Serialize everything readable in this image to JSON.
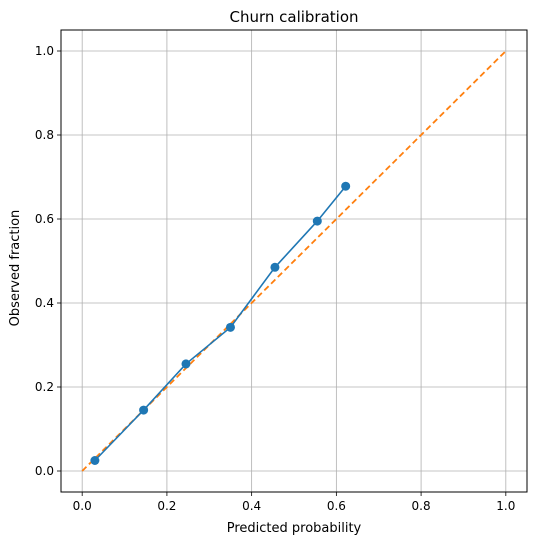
{
  "chart_data": {
    "type": "line",
    "title": "Churn calibration",
    "xlabel": "Predicted probability",
    "ylabel": "Observed fraction",
    "xlim": [
      -0.05,
      1.05
    ],
    "ylim": [
      -0.05,
      1.05
    ],
    "xticks": [
      0.0,
      0.2,
      0.4,
      0.6,
      0.8,
      1.0
    ],
    "yticks": [
      0.0,
      0.2,
      0.4,
      0.6,
      0.8,
      1.0
    ],
    "xtick_labels": [
      "0.0",
      "0.2",
      "0.4",
      "0.6",
      "0.8",
      "1.0"
    ],
    "ytick_labels": [
      "0.0",
      "0.2",
      "0.4",
      "0.6",
      "0.8",
      "1.0"
    ],
    "grid": true,
    "series": [
      {
        "style": "solid line with circle markers",
        "color": "#1f77b4",
        "x": [
          0.03,
          0.145,
          0.245,
          0.35,
          0.455,
          0.555,
          0.622
        ],
        "y": [
          0.025,
          0.145,
          0.255,
          0.342,
          0.485,
          0.595,
          0.678
        ]
      },
      {
        "style": "dashed line",
        "color": "#ff7f0e",
        "x": [
          0.0,
          1.0
        ],
        "y": [
          0.0,
          1.0
        ]
      }
    ]
  }
}
